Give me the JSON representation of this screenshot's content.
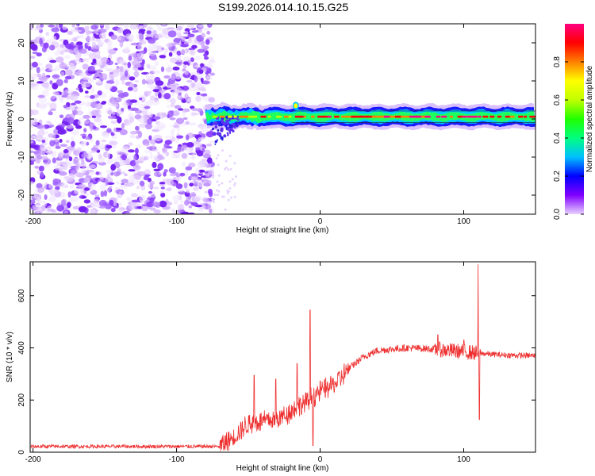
{
  "title": "S199.2026.014.10.15.G25",
  "chart_data": [
    {
      "type": "heatmap",
      "name": "spectrogram",
      "xlabel": "Height of straight line (km)",
      "ylabel": "Frequency (Hz)",
      "xlim": [
        -202,
        150
      ],
      "ylim": [
        -25,
        25
      ],
      "xticks": [
        -200,
        -100,
        0,
        100
      ],
      "yticks": [
        -20,
        -10,
        0,
        10,
        20
      ],
      "noise_region_x": [
        -202,
        -75
      ],
      "signal_start_x": -80,
      "carrier_freq_hz": 0.6,
      "spike_x": -17,
      "spike_freq_hz": 3.5,
      "colorbar": {
        "label": "Normalized spectral amplitude",
        "range": [
          0,
          1
        ],
        "ticks": [
          0.0,
          0.2,
          0.4,
          0.6,
          0.8
        ],
        "tick_labels": [
          "0.0",
          "0.2",
          "0.4",
          "0.6",
          "0.8"
        ],
        "colors": [
          "#e8d0ff",
          "#8000ff",
          "#0000ff",
          "#00c0ff",
          "#00ff80",
          "#20ff00",
          "#c0ff00",
          "#ffff00",
          "#ff8000",
          "#ff0000",
          "#ff0080"
        ]
      }
    },
    {
      "type": "line",
      "name": "snr",
      "xlabel": "Height of straight line (km)",
      "ylabel": "SNR (10 * v/v)",
      "xlim": [
        -202,
        150
      ],
      "ylim": [
        0,
        730
      ],
      "xticks": [
        -200,
        -100,
        0,
        100
      ],
      "yticks": [
        0,
        200,
        400,
        600
      ],
      "color": "#ee3030",
      "anchors": {
        "x": [
          -202,
          -70,
          -60,
          -50,
          -40,
          -30,
          -20,
          -10,
          0,
          10,
          20,
          30,
          40,
          50,
          60,
          70,
          80,
          90,
          100,
          110,
          120,
          130,
          150
        ],
        "y": [
          22,
          22,
          60,
          110,
          120,
          125,
          160,
          190,
          235,
          260,
          320,
          365,
          390,
          395,
          400,
          398,
          395,
          390,
          385,
          380,
          375,
          372,
          370
        ]
      },
      "spikes": {
        "x": [
          -46,
          -31,
          -16,
          -7,
          -5,
          82,
          100,
          110,
          111
        ],
        "y": [
          295,
          280,
          340,
          545,
          25,
          450,
          430,
          720,
          125
        ]
      }
    }
  ]
}
